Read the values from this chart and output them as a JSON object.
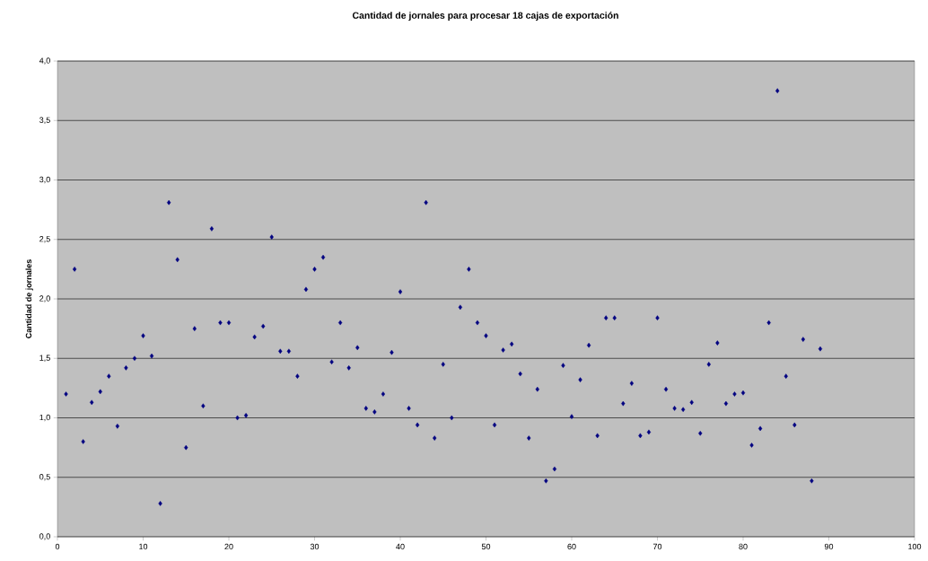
{
  "chart_data": {
    "type": "scatter",
    "title": "Cantidad de jornales para procesar 18 cajas de exportación",
    "ylabel": "Cantidad de jornales",
    "x": [
      1,
      2,
      3,
      4,
      5,
      6,
      7,
      8,
      9,
      10,
      11,
      12,
      13,
      14,
      15,
      16,
      17,
      18,
      19,
      20,
      21,
      22,
      23,
      24,
      25,
      26,
      27,
      28,
      29,
      30,
      31,
      32,
      33,
      34,
      35,
      36,
      37,
      38,
      39,
      40,
      41,
      42,
      43,
      44,
      45,
      46,
      47,
      48,
      49,
      50,
      51,
      52,
      53,
      54,
      55,
      56,
      57,
      58,
      59,
      60,
      61,
      62,
      63,
      64,
      65,
      66,
      67,
      68,
      69,
      70,
      71,
      72,
      73,
      74,
      75,
      76,
      77,
      78,
      79,
      80,
      81,
      82,
      83,
      84,
      85,
      86,
      87,
      88,
      89
    ],
    "values": [
      1.2,
      2.25,
      0.8,
      1.13,
      1.22,
      1.35,
      0.93,
      1.42,
      1.5,
      1.69,
      1.52,
      0.28,
      2.81,
      2.33,
      0.75,
      1.75,
      1.1,
      2.59,
      1.8,
      1.8,
      1.0,
      1.02,
      1.68,
      1.77,
      2.52,
      1.56,
      1.56,
      1.35,
      2.08,
      2.25,
      2.35,
      1.47,
      1.8,
      1.42,
      1.59,
      1.08,
      1.05,
      1.2,
      1.55,
      2.06,
      1.08,
      0.94,
      2.81,
      0.83,
      1.45,
      1.0,
      1.93,
      2.25,
      1.8,
      1.69,
      0.94,
      1.57,
      1.62,
      1.37,
      0.83,
      1.24,
      0.47,
      0.57,
      1.44,
      1.01,
      1.32,
      1.61,
      0.85,
      1.84,
      1.84,
      1.12,
      1.29,
      0.85,
      0.88,
      1.84,
      1.24,
      1.08,
      1.07,
      1.13,
      0.87,
      1.45,
      1.63,
      1.12,
      1.2,
      1.21,
      0.77,
      0.91,
      1.8,
      3.75,
      1.35,
      0.94,
      1.66,
      0.47,
      1.58
    ],
    "color": "#000080",
    "marker": "diamond",
    "grid": "y",
    "xlim": [
      0,
      100
    ],
    "xticks": [
      0,
      10,
      20,
      30,
      40,
      50,
      60,
      70,
      80,
      90,
      100
    ],
    "ylim": [
      0,
      4
    ],
    "yticks": [
      {
        "value": 0,
        "label": "0,0"
      },
      {
        "value": 0.5,
        "label": "0,5"
      },
      {
        "value": 1,
        "label": "1,0"
      },
      {
        "value": 1.5,
        "label": "1,5"
      },
      {
        "value": 2,
        "label": "2,0"
      },
      {
        "value": 2.5,
        "label": "2,5"
      },
      {
        "value": 3,
        "label": "3,0"
      },
      {
        "value": 3.5,
        "label": "3,5"
      },
      {
        "value": 4,
        "label": "4,0"
      }
    ]
  }
}
